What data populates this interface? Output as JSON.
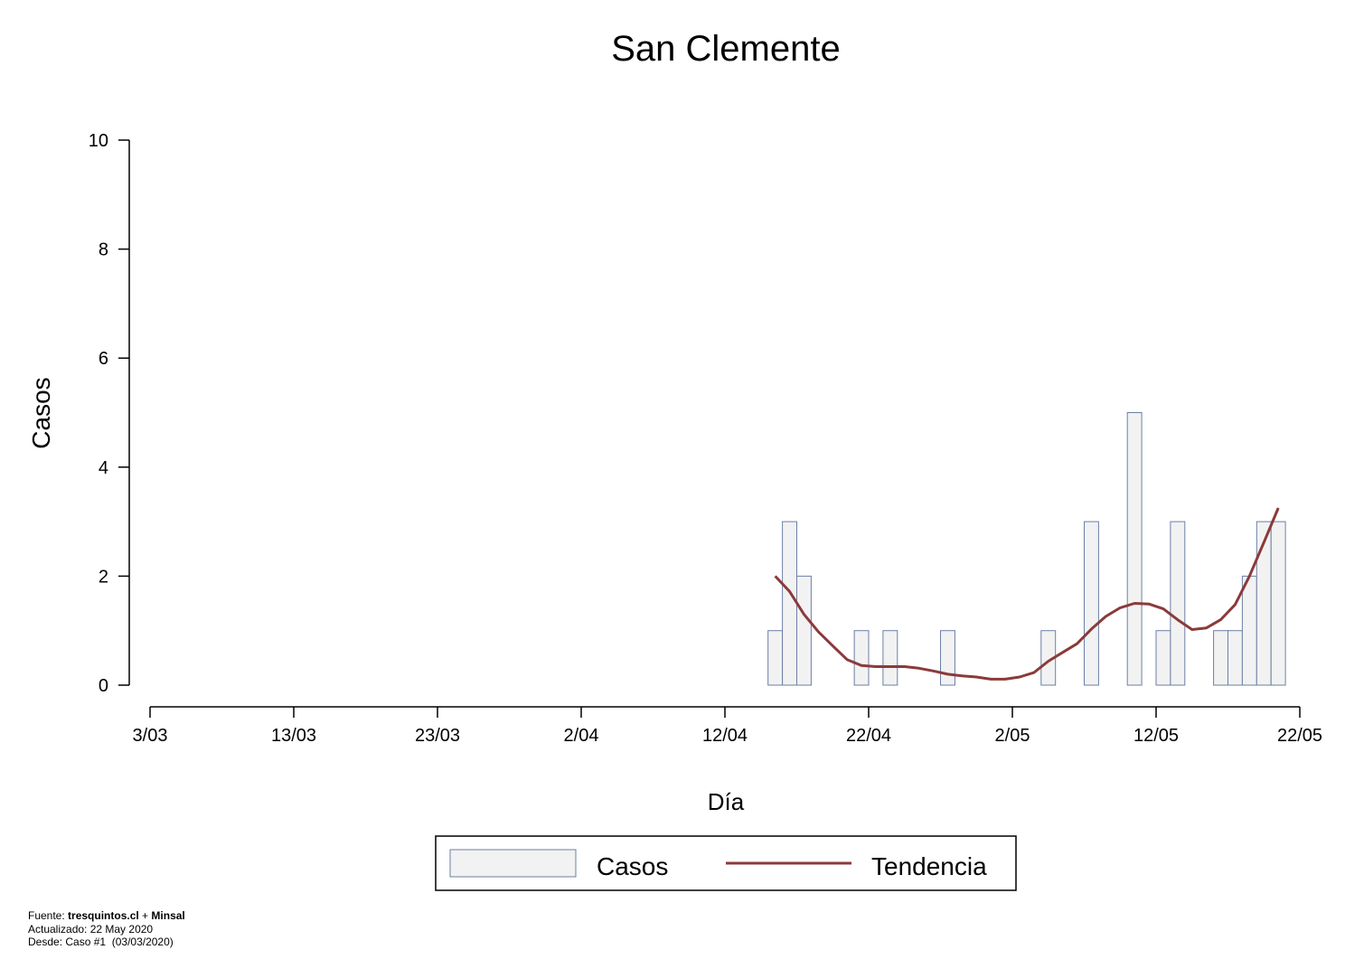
{
  "chart_data": {
    "type": "bar",
    "title": "San Clemente",
    "xlabel": "Día",
    "ylabel": "Casos",
    "ylim": [
      0,
      10
    ],
    "yticks": [
      0,
      2,
      4,
      6,
      8,
      10
    ],
    "xticks": [
      "3/03",
      "13/03",
      "23/03",
      "2/04",
      "12/04",
      "22/04",
      "2/05",
      "12/05",
      "22/05"
    ],
    "xlim": [
      "2020-03-03",
      "2020-05-22"
    ],
    "legend_position": "bottom",
    "series": [
      {
        "name": "Casos",
        "kind": "bar",
        "color": "#f2f2f2",
        "edge_color": "#6b7fa6",
        "points": [
          {
            "date": "2020-04-16",
            "value": 1
          },
          {
            "date": "2020-04-17",
            "value": 3
          },
          {
            "date": "2020-04-18",
            "value": 2
          },
          {
            "date": "2020-04-22",
            "value": 1
          },
          {
            "date": "2020-04-24",
            "value": 1
          },
          {
            "date": "2020-04-28",
            "value": 1
          },
          {
            "date": "2020-05-05",
            "value": 1
          },
          {
            "date": "2020-05-08",
            "value": 3
          },
          {
            "date": "2020-05-11",
            "value": 5
          },
          {
            "date": "2020-05-13",
            "value": 1
          },
          {
            "date": "2020-05-14",
            "value": 3
          },
          {
            "date": "2020-05-17",
            "value": 1
          },
          {
            "date": "2020-05-18",
            "value": 1
          },
          {
            "date": "2020-05-19",
            "value": 2
          },
          {
            "date": "2020-05-20",
            "value": 3
          },
          {
            "date": "2020-05-21",
            "value": 3
          }
        ]
      },
      {
        "name": "Tendencia",
        "kind": "line",
        "color": "#8b3a3a",
        "points": [
          {
            "date": "2020-04-16",
            "value": 2.0
          },
          {
            "date": "2020-04-17",
            "value": 1.72
          },
          {
            "date": "2020-04-18",
            "value": 1.3
          },
          {
            "date": "2020-04-19",
            "value": 0.98
          },
          {
            "date": "2020-04-20",
            "value": 0.72
          },
          {
            "date": "2020-04-21",
            "value": 0.47
          },
          {
            "date": "2020-04-22",
            "value": 0.36
          },
          {
            "date": "2020-04-23",
            "value": 0.34
          },
          {
            "date": "2020-04-24",
            "value": 0.34
          },
          {
            "date": "2020-04-25",
            "value": 0.34
          },
          {
            "date": "2020-04-26",
            "value": 0.31
          },
          {
            "date": "2020-04-27",
            "value": 0.26
          },
          {
            "date": "2020-04-28",
            "value": 0.2
          },
          {
            "date": "2020-04-29",
            "value": 0.17
          },
          {
            "date": "2020-04-30",
            "value": 0.15
          },
          {
            "date": "2020-05-01",
            "value": 0.11
          },
          {
            "date": "2020-05-02",
            "value": 0.11
          },
          {
            "date": "2020-05-03",
            "value": 0.15
          },
          {
            "date": "2020-05-04",
            "value": 0.23
          },
          {
            "date": "2020-05-05",
            "value": 0.44
          },
          {
            "date": "2020-05-06",
            "value": 0.6
          },
          {
            "date": "2020-05-07",
            "value": 0.76
          },
          {
            "date": "2020-05-08",
            "value": 1.03
          },
          {
            "date": "2020-05-09",
            "value": 1.26
          },
          {
            "date": "2020-05-10",
            "value": 1.42
          },
          {
            "date": "2020-05-11",
            "value": 1.5
          },
          {
            "date": "2020-05-12",
            "value": 1.49
          },
          {
            "date": "2020-05-13",
            "value": 1.4
          },
          {
            "date": "2020-05-14",
            "value": 1.2
          },
          {
            "date": "2020-05-15",
            "value": 1.02
          },
          {
            "date": "2020-05-16",
            "value": 1.05
          },
          {
            "date": "2020-05-17",
            "value": 1.2
          },
          {
            "date": "2020-05-18",
            "value": 1.48
          },
          {
            "date": "2020-05-19",
            "value": 2.0
          },
          {
            "date": "2020-05-20",
            "value": 2.62
          },
          {
            "date": "2020-05-21",
            "value": 3.25
          }
        ]
      }
    ]
  },
  "footer": {
    "source_prefix": "Fuente: ",
    "source_site": "tresquintos.cl",
    "source_join": " + ",
    "source_org": "Minsal",
    "updated": "Actualizado: 22 May 2020",
    "since": "Desde: Caso #1  (03/03/2020)"
  }
}
